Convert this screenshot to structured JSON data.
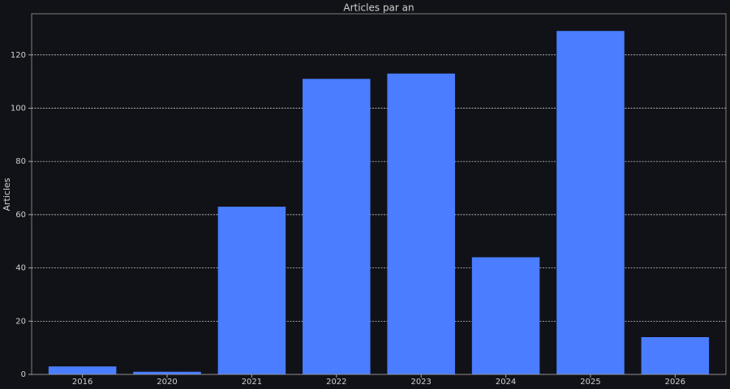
{
  "chart_data": {
    "type": "bar",
    "title": "Articles par an",
    "y_label": "Articles",
    "categories": [
      "2016",
      "2020",
      "2021",
      "2022",
      "2023",
      "2024",
      "2025",
      "2026"
    ],
    "values": [
      3,
      1,
      63,
      111,
      113,
      44,
      129,
      14
    ],
    "color": "#4a7dff",
    "ylim": [
      0,
      135.45
    ],
    "yticks": [
      0,
      20,
      40,
      60,
      80,
      100,
      120
    ],
    "grid": true
  }
}
